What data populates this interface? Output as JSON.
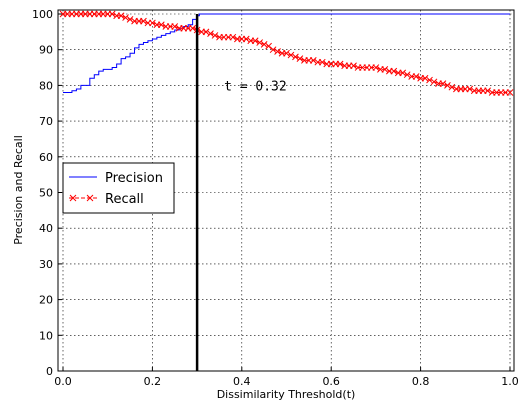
{
  "chart_data": {
    "type": "line",
    "xlabel": "Dissimilarity Threshold(t)",
    "ylabel": "Precision and Recall",
    "xlim": [
      0,
      1
    ],
    "ylim": [
      0,
      100
    ],
    "xticks": [
      "0.0",
      "0.2",
      "0.4",
      "0.6",
      "0.8",
      "1.0"
    ],
    "yticks": [
      "0",
      "10",
      "20",
      "30",
      "40",
      "50",
      "60",
      "70",
      "80",
      "90",
      "100"
    ],
    "grid": true,
    "legend_position": "middle-left",
    "threshold": {
      "x": 0.3,
      "label": "t = 0.32"
    },
    "series": [
      {
        "name": "Precision",
        "color": "#0000ff",
        "marker": "none",
        "x": [
          0.0,
          0.02,
          0.03,
          0.04,
          0.05,
          0.06,
          0.07,
          0.08,
          0.09,
          0.1,
          0.11,
          0.12,
          0.13,
          0.14,
          0.15,
          0.16,
          0.17,
          0.18,
          0.19,
          0.2,
          0.21,
          0.22,
          0.23,
          0.24,
          0.25,
          0.26,
          0.27,
          0.28,
          0.29,
          0.3,
          0.305,
          1.0
        ],
        "y": [
          78,
          78.5,
          79,
          80,
          80,
          82,
          83,
          84,
          84.5,
          84.5,
          85,
          86,
          87.5,
          88,
          89,
          90.5,
          91.5,
          92,
          92.5,
          93,
          93.5,
          94,
          94.5,
          95,
          95.5,
          96,
          96.5,
          97,
          98.5,
          99.5,
          100,
          100
        ]
      },
      {
        "name": "Recall",
        "color": "#ff0000",
        "marker": "x",
        "x": [
          0.0,
          0.01,
          0.02,
          0.03,
          0.04,
          0.05,
          0.06,
          0.07,
          0.08,
          0.09,
          0.1,
          0.11,
          0.12,
          0.13,
          0.14,
          0.15,
          0.16,
          0.17,
          0.18,
          0.19,
          0.2,
          0.21,
          0.22,
          0.23,
          0.24,
          0.25,
          0.26,
          0.27,
          0.28,
          0.29,
          0.3,
          0.31,
          0.32,
          0.33,
          0.34,
          0.35,
          0.36,
          0.37,
          0.38,
          0.39,
          0.4,
          0.41,
          0.42,
          0.43,
          0.44,
          0.45,
          0.46,
          0.47,
          0.48,
          0.49,
          0.5,
          0.51,
          0.52,
          0.53,
          0.54,
          0.55,
          0.56,
          0.57,
          0.58,
          0.59,
          0.6,
          0.61,
          0.62,
          0.63,
          0.64,
          0.65,
          0.66,
          0.67,
          0.68,
          0.69,
          0.7,
          0.71,
          0.72,
          0.73,
          0.74,
          0.75,
          0.76,
          0.77,
          0.78,
          0.79,
          0.8,
          0.81,
          0.82,
          0.83,
          0.84,
          0.85,
          0.86,
          0.87,
          0.88,
          0.89,
          0.9,
          0.91,
          0.92,
          0.93,
          0.94,
          0.95,
          0.96,
          0.97,
          0.98,
          0.99,
          1.0
        ],
        "y": [
          100,
          100,
          100,
          100,
          100,
          100,
          100,
          100,
          100,
          100,
          100,
          100,
          99.5,
          99.5,
          99,
          98.5,
          98,
          98,
          98,
          97.5,
          97.5,
          97,
          97,
          96.5,
          96.5,
          96.5,
          96,
          96,
          96,
          96,
          95.5,
          95,
          95,
          94.5,
          94,
          93.5,
          93.5,
          93.5,
          93.5,
          93,
          93,
          93,
          92.5,
          92.5,
          92,
          91.5,
          91,
          90,
          89.5,
          89,
          89,
          88.5,
          88,
          87.5,
          87,
          87,
          87,
          86.5,
          86.5,
          86,
          86,
          86,
          86,
          85.5,
          85.5,
          85.5,
          85,
          85,
          85,
          85,
          85,
          84.5,
          84.5,
          84,
          84,
          83.5,
          83.5,
          83,
          82.5,
          82.5,
          82,
          82,
          81.5,
          81,
          80.5,
          80.5,
          80,
          79.5,
          79,
          79,
          79,
          79,
          78.5,
          78.5,
          78.5,
          78.5,
          78,
          78,
          78,
          78,
          78
        ]
      }
    ]
  }
}
